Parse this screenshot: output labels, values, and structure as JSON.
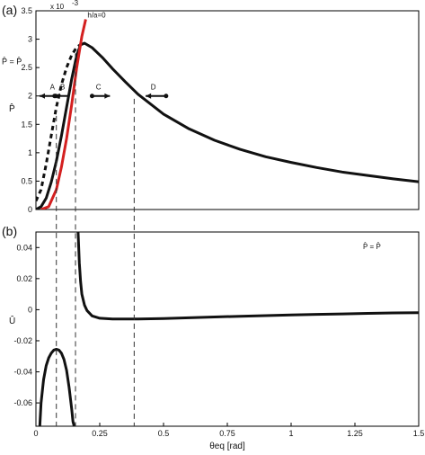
{
  "chart_data": [
    {
      "type": "line",
      "panel_label": "(a)",
      "ylabel": "P̂",
      "y_exponent": "x 10",
      "y_exponent_power": "-3",
      "xlim": [
        0,
        1.5
      ],
      "ylim": [
        0,
        3.5
      ],
      "yticks": [
        "0",
        "0.5",
        "1",
        "1.5",
        "2",
        "2.5",
        "3",
        "3.5"
      ],
      "series": [
        {
          "style": "solid-black",
          "x": [
            0.0,
            0.02,
            0.04,
            0.06,
            0.08,
            0.1,
            0.12,
            0.14,
            0.16,
            0.175,
            0.19,
            0.22,
            0.26,
            0.3,
            0.35,
            0.4,
            0.5,
            0.6,
            0.7,
            0.8,
            0.9,
            1.0,
            1.1,
            1.2,
            1.3,
            1.4,
            1.5
          ],
          "y": [
            0.0,
            0.05,
            0.2,
            0.48,
            0.85,
            1.3,
            1.8,
            2.3,
            2.72,
            2.9,
            2.93,
            2.85,
            2.68,
            2.48,
            2.25,
            2.03,
            1.68,
            1.42,
            1.22,
            1.06,
            0.93,
            0.83,
            0.74,
            0.66,
            0.6,
            0.54,
            0.49
          ]
        },
        {
          "style": "dashed-black",
          "x": [
            0.0,
            0.02,
            0.04,
            0.06,
            0.08,
            0.1,
            0.12,
            0.14,
            0.16,
            0.18,
            0.19
          ],
          "y": [
            0.15,
            0.35,
            0.8,
            1.3,
            1.8,
            2.2,
            2.5,
            2.72,
            2.86,
            2.92,
            2.93
          ]
        },
        {
          "style": "solid-red",
          "name": "h/a=0",
          "x": [
            0.02,
            0.05,
            0.08,
            0.1,
            0.12,
            0.14,
            0.16,
            0.18,
            0.195
          ],
          "y": [
            0.0,
            0.05,
            0.35,
            0.75,
            1.25,
            1.85,
            2.5,
            3.05,
            3.35
          ]
        }
      ],
      "vlines": [
        0.08,
        0.155,
        0.385
      ],
      "annotations": [
        {
          "text": "A",
          "x": 0.055,
          "y": 2.05
        },
        {
          "text": "B",
          "x": 0.095,
          "y": 2.05
        },
        {
          "text": "C",
          "x": 0.235,
          "y": 2.05
        },
        {
          "text": "D",
          "x": 0.45,
          "y": 2.05
        },
        {
          "text": "P̂ = P̂",
          "x": -0.1,
          "y": 2.4
        }
      ]
    },
    {
      "type": "line",
      "panel_label": "(b)",
      "ylabel": "Û",
      "xlabel": "θeq [rad]",
      "xlim": [
        0,
        1.5
      ],
      "ylim": [
        -0.075,
        0.05
      ],
      "xticks": [
        "0",
        "0.25",
        "0.5",
        "0.75",
        "1",
        "1.25",
        "1.5"
      ],
      "yticks": [
        "0.04",
        "0.02",
        "0",
        "-0.02",
        "-0.04",
        "-0.06"
      ],
      "legend_text": "P̂ = P̂",
      "series": [
        {
          "style": "solid-black",
          "x": [
            0.015,
            0.02,
            0.03,
            0.04,
            0.05,
            0.06,
            0.07,
            0.08,
            0.09,
            0.1,
            0.11,
            0.12,
            0.13,
            0.14,
            0.145,
            0.15
          ],
          "y": [
            -0.075,
            -0.06,
            -0.045,
            -0.036,
            -0.031,
            -0.028,
            -0.026,
            -0.0255,
            -0.026,
            -0.028,
            -0.032,
            -0.039,
            -0.05,
            -0.064,
            -0.072,
            -0.075
          ]
        },
        {
          "style": "solid-black",
          "x": [
            0.165,
            0.17,
            0.175,
            0.18,
            0.19,
            0.2,
            0.22,
            0.25,
            0.3,
            0.35,
            0.4,
            0.5,
            0.6,
            0.7,
            0.8,
            0.9,
            1.0,
            1.1,
            1.2,
            1.3,
            1.4,
            1.5
          ],
          "y": [
            0.05,
            0.03,
            0.018,
            0.01,
            0.003,
            -0.0005,
            -0.004,
            -0.0055,
            -0.006,
            -0.006,
            -0.006,
            -0.0057,
            -0.0052,
            -0.0047,
            -0.0042,
            -0.0038,
            -0.0034,
            -0.003,
            -0.0027,
            -0.0024,
            -0.0021,
            -0.0019
          ]
        }
      ],
      "vlines": [
        0.08,
        0.155,
        0.385
      ]
    }
  ]
}
